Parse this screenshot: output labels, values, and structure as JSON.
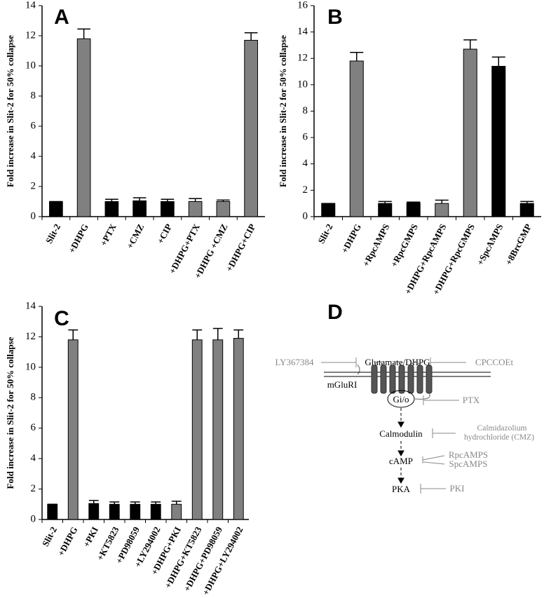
{
  "chart_data": [
    {
      "type": "bar",
      "panel": "A",
      "ylabel": "Fold increase in Slit-2 for 50% collapse",
      "categories": [
        "Slit-2",
        "+DHPG",
        "+PTX",
        "+CMZ",
        "+CIP",
        "+DHPG+PTX",
        "+DHPG +CMZ",
        "+DHPG+CIP"
      ],
      "values": [
        1,
        11.8,
        1.0,
        1.05,
        1.0,
        1.0,
        1.0,
        11.7
      ],
      "errors": [
        0,
        0.65,
        0.15,
        0.2,
        0.15,
        0.2,
        0.1,
        0.5
      ],
      "colors": [
        "#000000",
        "#808080",
        "#000000",
        "#000000",
        "#000000",
        "#808080",
        "#808080",
        "#808080"
      ],
      "ylim": [
        0,
        14
      ],
      "yticks": [
        0,
        2,
        4,
        6,
        8,
        10,
        12,
        14
      ]
    },
    {
      "type": "bar",
      "panel": "B",
      "ylabel": "Fold increase in Slit-2 for 50% collapse",
      "categories": [
        "Slit-2",
        "+DHPG",
        "+RpcAMPS",
        "+RpcGMPS",
        "+DHPG+RpcAMPS",
        "+DHPG+RpcGMPS",
        "+SpcAMPS",
        "+8BrcGMP"
      ],
      "values": [
        1,
        11.8,
        1.0,
        1.05,
        1.0,
        12.7,
        11.4,
        1.0
      ],
      "errors": [
        0,
        0.65,
        0.15,
        0.05,
        0.25,
        0.7,
        0.7,
        0.15
      ],
      "colors": [
        "#000000",
        "#808080",
        "#000000",
        "#000000",
        "#808080",
        "#808080",
        "#000000",
        "#000000"
      ],
      "ylim": [
        0,
        16
      ],
      "yticks": [
        0,
        2,
        4,
        6,
        8,
        10,
        12,
        14,
        16
      ]
    },
    {
      "type": "bar",
      "panel": "C",
      "ylabel": "Fold increase in Slit-2 for 50% collapse",
      "categories": [
        "Slit-2",
        "+DHPG",
        "+PKI",
        "+KT5823",
        "+PD98059",
        "+LY294002",
        "+DHPG+PKI",
        "+DHPG+KT5823",
        "+DHPG+PD98059",
        "+DHPG+LY294002"
      ],
      "values": [
        1,
        11.8,
        1.05,
        1.0,
        1.0,
        1.0,
        1.0,
        11.8,
        11.8,
        11.9
      ],
      "errors": [
        0,
        0.65,
        0.2,
        0.15,
        0.15,
        0.15,
        0.2,
        0.65,
        0.75,
        0.55
      ],
      "colors": [
        "#000000",
        "#808080",
        "#000000",
        "#000000",
        "#000000",
        "#000000",
        "#808080",
        "#808080",
        "#808080",
        "#808080"
      ],
      "ylim": [
        0,
        14
      ],
      "yticks": [
        0,
        2,
        4,
        6,
        8,
        10,
        12,
        14
      ]
    }
  ],
  "diagram": {
    "panel": "D",
    "ligand": "Glutamate/DHPG",
    "antagonist_left": "LY367384",
    "antagonist_right": "CPCCOEt",
    "receptor": "mGluRI",
    "g_protein": "Gi/o",
    "g_inhibitor": "PTX",
    "calmodulin": "Calmodulin",
    "calmodulin_inhibitor": [
      "Calmidazolium",
      "hydrochloride (CMZ)"
    ],
    "camp": "cAMP",
    "camp_modulators": [
      "RpcAMPS",
      "SpcAMPS"
    ],
    "pka": "PKA",
    "pka_inhibitor": "PKI"
  }
}
